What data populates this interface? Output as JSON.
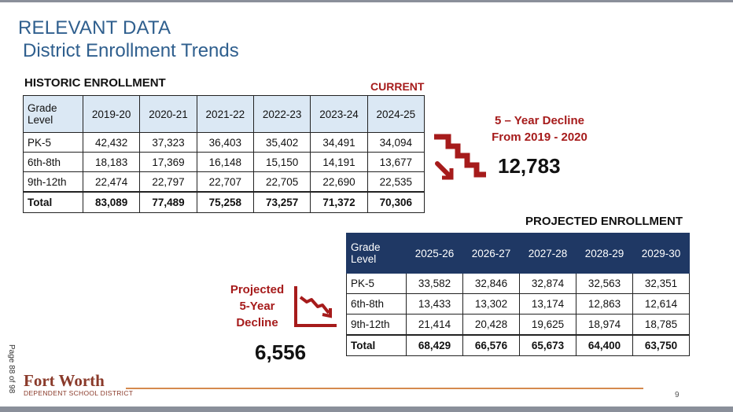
{
  "header": {
    "title": "RELEVANT DATA",
    "subtitle": "District Enrollment Trends"
  },
  "historic": {
    "label": "HISTORIC ENROLLMENT",
    "current_label": "CURRENT",
    "head": [
      "Grade Level",
      "2019-20",
      "2020-21",
      "2021-22",
      "2022-23",
      "2023-24",
      "2024-25"
    ],
    "rows": [
      [
        "PK-5",
        "42,432",
        "37,323",
        "36,403",
        "35,402",
        "34,491",
        "34,094"
      ],
      [
        "6th-8th",
        "18,183",
        "17,369",
        "16,148",
        "15,150",
        "14,191",
        "13,677"
      ],
      [
        "9th-12th",
        "22,474",
        "22,797",
        "22,707",
        "22,705",
        "22,690",
        "22,535"
      ],
      [
        "Total",
        "83,089",
        "77,489",
        "75,258",
        "73,257",
        "71,372",
        "70,306"
      ]
    ]
  },
  "decline": {
    "line1": "5 – Year Decline",
    "line2": "From 2019 - 2020",
    "value": "12,783",
    "icon": "stairs-down-icon",
    "color": "#a61b1b"
  },
  "projected": {
    "label": "PROJECTED ENROLLMENT",
    "head": [
      "Grade Level",
      "2025-26",
      "2026-27",
      "2027-28",
      "2028-29",
      "2029-30"
    ],
    "rows": [
      [
        "PK-5",
        "33,582",
        "32,846",
        "32,874",
        "32,563",
        "32,351"
      ],
      [
        "6th-8th",
        "13,433",
        "13,302",
        "13,174",
        "12,863",
        "12,614"
      ],
      [
        "9th-12th",
        "21,414",
        "20,428",
        "19,625",
        "18,974",
        "18,785"
      ],
      [
        "Total",
        "68,429",
        "66,576",
        "65,673",
        "64,400",
        "63,750"
      ]
    ],
    "header_color": "#1f3864"
  },
  "projected_decline": {
    "line1": "Projected",
    "line2": "5-Year",
    "line3": "Decline",
    "value": "6,556",
    "icon": "trend-down-chart-icon"
  },
  "footer": {
    "page_info": "Page 88 of 98",
    "logo": "Fort Worth",
    "logo_sub": "DEPENDENT SCHOOL DISTRICT",
    "page_number": "9"
  }
}
